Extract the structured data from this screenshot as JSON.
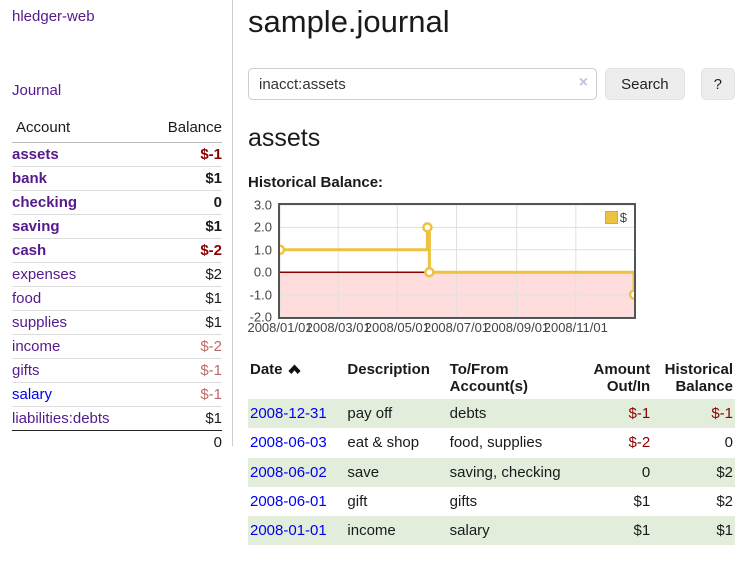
{
  "app": {
    "brand": "hledger-web",
    "nav_journal": "Journal"
  },
  "colors": {
    "link_visited": "#551a8b",
    "link_unvisited": "#0000ee",
    "negative_strong": "#8b0000",
    "negative_light": "#bb6a6a",
    "row_stripe_green": "#e2eedb",
    "series_yellow": "#edc240"
  },
  "sidebar": {
    "accounts_header": {
      "account": "Account",
      "balance": "Balance"
    },
    "accounts": [
      {
        "name": "assets",
        "balance": "$-1",
        "depth": 1,
        "emphasis": true,
        "balance_tone": "neg-strong",
        "link_tone": "visited"
      },
      {
        "name": "bank",
        "balance": "$1",
        "depth": 2,
        "emphasis": true,
        "balance_tone": "",
        "link_tone": "visited"
      },
      {
        "name": "checking",
        "balance": "0",
        "depth": 3,
        "emphasis": true,
        "balance_tone": "",
        "link_tone": "visited"
      },
      {
        "name": "saving",
        "balance": "$1",
        "depth": 3,
        "emphasis": true,
        "balance_tone": "",
        "link_tone": "visited"
      },
      {
        "name": "cash",
        "balance": "$-2",
        "depth": 2,
        "emphasis": true,
        "balance_tone": "neg-strong",
        "link_tone": "visited"
      },
      {
        "name": "expenses",
        "balance": "$2",
        "depth": 1,
        "emphasis": false,
        "balance_tone": "",
        "link_tone": "visited"
      },
      {
        "name": "food",
        "balance": "$1",
        "depth": 2,
        "emphasis": false,
        "balance_tone": "",
        "link_tone": "visited"
      },
      {
        "name": "supplies",
        "balance": "$1",
        "depth": 2,
        "emphasis": false,
        "balance_tone": "",
        "link_tone": "visited"
      },
      {
        "name": "income",
        "balance": "$-2",
        "depth": 1,
        "emphasis": false,
        "balance_tone": "neg-light",
        "link_tone": "visited"
      },
      {
        "name": "gifts",
        "balance": "$-1",
        "depth": 2,
        "emphasis": false,
        "balance_tone": "neg-light",
        "link_tone": "visited"
      },
      {
        "name": "salary",
        "balance": "$-1",
        "depth": 2,
        "emphasis": false,
        "balance_tone": "neg-light",
        "link_tone": "unvisited"
      },
      {
        "name": "liabilities:debts",
        "balance": "$1",
        "depth": 1,
        "emphasis": false,
        "balance_tone": "",
        "link_tone": "visited"
      }
    ],
    "total": "0"
  },
  "header": {
    "title": "sample.journal"
  },
  "search": {
    "value": "inacct:assets",
    "clear_icon": "×",
    "button_label": "Search",
    "help_label": "?"
  },
  "main": {
    "account_title": "assets",
    "chart_label": "Historical Balance:"
  },
  "chart_data": {
    "type": "line",
    "step": true,
    "title": "Historical Balance:",
    "series": [
      {
        "name": "$",
        "color": "#edc240",
        "points": [
          [
            "2008/01/01",
            1
          ],
          [
            "2008/06/01",
            2
          ],
          [
            "2008/06/03",
            0
          ],
          [
            "2008/12/31",
            -1
          ]
        ]
      }
    ],
    "xrange": [
      "2008/01/01",
      "2008/12/31"
    ],
    "ylim": [
      -2,
      3
    ],
    "yticks": [
      "3.0",
      "2.0",
      "1.0",
      "0.0",
      "-1.0",
      "-2.0"
    ],
    "xticks": [
      "2008/01/01",
      "2008/03/01",
      "2008/05/01",
      "2008/07/01",
      "2008/09/01",
      "2008/11/01"
    ],
    "grid": true,
    "legend_position": "top-right",
    "zero_line_color": "#8b0000",
    "negative_region_color": "#ffdddd"
  },
  "register": {
    "headers": [
      "Date",
      "Description",
      "To/From Account(s)",
      "Amount Out/In",
      "Historical Balance"
    ],
    "sort": "ascending",
    "rows": [
      {
        "date": "2008-12-31",
        "description": "pay off",
        "accounts": "debts",
        "amount": "$-1",
        "balance": "$-1"
      },
      {
        "date": "2008-06-03",
        "description": "eat & shop",
        "accounts": "food, supplies",
        "amount": "$-2",
        "balance": "0"
      },
      {
        "date": "2008-06-02",
        "description": "save",
        "accounts": "saving, checking",
        "amount": "0",
        "balance": "$2"
      },
      {
        "date": "2008-06-01",
        "description": "gift",
        "accounts": "gifts",
        "amount": "$1",
        "balance": "$2"
      },
      {
        "date": "2008-01-01",
        "description": "income",
        "accounts": "salary",
        "amount": "$1",
        "balance": "$1"
      }
    ]
  }
}
